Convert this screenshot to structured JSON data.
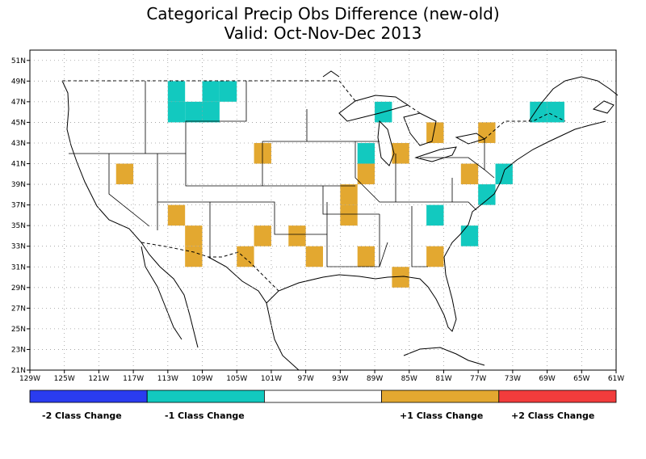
{
  "title": {
    "line1": "Categorical Precip Obs Difference (new-old)",
    "line2": "Valid: Oct-Nov-Dec 2013"
  },
  "map": {
    "lon_range": [
      -129,
      -61
    ],
    "lat_range": [
      21,
      52
    ],
    "x_ticks": [
      "129W",
      "125W",
      "121W",
      "117W",
      "113W",
      "109W",
      "105W",
      "101W",
      "97W",
      "93W",
      "89W",
      "85W",
      "81W",
      "77W",
      "73W",
      "69W",
      "65W",
      "61W"
    ],
    "y_ticks": [
      "21N",
      "23N",
      "25N",
      "27N",
      "29N",
      "31N",
      "33N",
      "35N",
      "37N",
      "39N",
      "41N",
      "43N",
      "45N",
      "47N",
      "49N",
      "51N"
    ],
    "grid": true
  },
  "colors": {
    "minus2": "#2a3cf0",
    "minus1": "#12c9bf",
    "zero": "#ffffff",
    "plus1": "#e3a830",
    "plus2": "#f23c3c"
  },
  "legend": {
    "labels": [
      "-2 Class Change",
      "-1 Class Change",
      "+1 Class Change",
      "+2 Class Change"
    ]
  },
  "cells": [
    {
      "lon": -112,
      "lat": 48,
      "v": -1
    },
    {
      "lon": -108,
      "lat": 48,
      "v": -1
    },
    {
      "lon": -106,
      "lat": 48,
      "v": -1
    },
    {
      "lon": -112,
      "lat": 46,
      "v": -1
    },
    {
      "lon": -110,
      "lat": 46,
      "v": -1
    },
    {
      "lon": -108,
      "lat": 46,
      "v": -1
    },
    {
      "lon": -88,
      "lat": 46,
      "v": -1
    },
    {
      "lon": -70,
      "lat": 46,
      "v": -1
    },
    {
      "lon": -68,
      "lat": 46,
      "v": -1
    },
    {
      "lon": -90,
      "lat": 42,
      "v": -1
    },
    {
      "lon": -74,
      "lat": 40,
      "v": -1
    },
    {
      "lon": -76,
      "lat": 38,
      "v": -1
    },
    {
      "lon": -82,
      "lat": 36,
      "v": -1
    },
    {
      "lon": -78,
      "lat": 34,
      "v": -1
    },
    {
      "lon": -82,
      "lat": 44,
      "v": 1
    },
    {
      "lon": -76,
      "lat": 44,
      "v": 1
    },
    {
      "lon": -102,
      "lat": 42,
      "v": 1
    },
    {
      "lon": -86,
      "lat": 42,
      "v": 1
    },
    {
      "lon": -118,
      "lat": 40,
      "v": 1
    },
    {
      "lon": -90,
      "lat": 40,
      "v": 1
    },
    {
      "lon": -78,
      "lat": 40,
      "v": 1
    },
    {
      "lon": -92,
      "lat": 38,
      "v": 1
    },
    {
      "lon": -92,
      "lat": 36,
      "v": 1
    },
    {
      "lon": -112,
      "lat": 36,
      "v": 1
    },
    {
      "lon": -110,
      "lat": 34,
      "v": 1
    },
    {
      "lon": -102,
      "lat": 34,
      "v": 1
    },
    {
      "lon": -98,
      "lat": 34,
      "v": 1
    },
    {
      "lon": -110,
      "lat": 32,
      "v": 1
    },
    {
      "lon": -104,
      "lat": 32,
      "v": 1
    },
    {
      "lon": -96,
      "lat": 32,
      "v": 1
    },
    {
      "lon": -90,
      "lat": 32,
      "v": 1
    },
    {
      "lon": -82,
      "lat": 32,
      "v": 1
    },
    {
      "lon": -86,
      "lat": 30,
      "v": 1
    }
  ]
}
